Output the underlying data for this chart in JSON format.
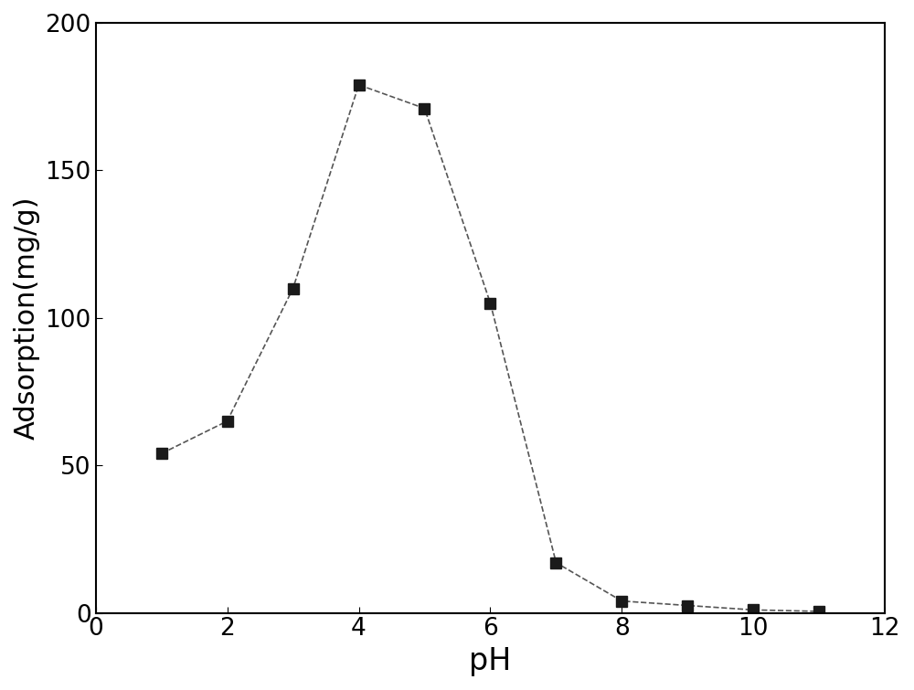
{
  "x": [
    1,
    2,
    3,
    4,
    5,
    6,
    7,
    8,
    9,
    10,
    11
  ],
  "y": [
    54,
    65,
    110,
    179,
    171,
    105,
    17,
    4,
    2.5,
    1,
    0.5
  ],
  "xlabel": "pH",
  "ylabel": "Adsorption(mg/g)",
  "xlim": [
    0,
    12
  ],
  "ylim": [
    0,
    200
  ],
  "xticks": [
    0,
    2,
    4,
    6,
    8,
    10,
    12
  ],
  "yticks": [
    0,
    50,
    100,
    150,
    200
  ],
  "marker": "s",
  "marker_color": "#1a1a1a",
  "marker_size": 8,
  "line_color": "#555555",
  "line_width": 1.2,
  "line_style": "--",
  "xlabel_fontsize": 24,
  "ylabel_fontsize": 22,
  "tick_fontsize": 19,
  "background_color": "#ffffff"
}
